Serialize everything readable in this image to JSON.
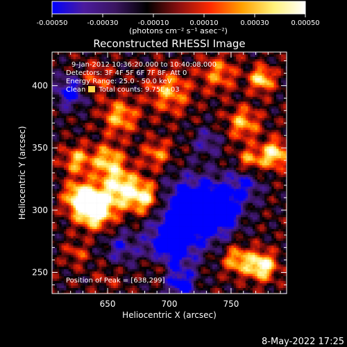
{
  "chart_data": {
    "type": "heatmap",
    "title": "Reconstructed RHESSI Image",
    "xlabel": "Heliocentric X (arcsec)",
    "ylabel": "Heliocentric Y (arcsec)",
    "xlim": [
      605,
      795
    ],
    "ylim": [
      233,
      427
    ],
    "x_ticks": [
      650,
      700,
      750
    ],
    "y_ticks": [
      250,
      300,
      350,
      400
    ],
    "colorbar": {
      "range": [
        -0.0005,
        0.0005
      ],
      "tick_values": [
        -0.0005,
        -0.0003,
        -0.0001,
        0.0001,
        0.0003,
        0.0005
      ],
      "tick_labels": [
        "-0.00050",
        "-0.00030",
        "-0.00010",
        "0.00010",
        "0.00030",
        "0.00050"
      ],
      "units_label": "(photons cm⁻² s⁻¹ asec⁻²)",
      "colors": [
        "#0000ff",
        "#4b1b9e",
        "#3a1560",
        "#000000",
        "#8a0f0f",
        "#ff2a00",
        "#ffa000",
        "#fff27a",
        "#ffffff"
      ]
    },
    "annotations": [
      "9-Jan-2012 10:36:20.000 to 10:40:08.000",
      "Detectors: 3F 4F 5F 6F 7F 8F, Att 0",
      "Energy Range: 25.0 - 50.0 keV",
      "Clean      Total counts: 9.75E+03",
      "Position of Peak = [638,299]"
    ],
    "peak": {
      "x": 638,
      "y": 299
    },
    "hot_spots": [
      {
        "x": 640,
        "y": 300,
        "amp": 1.0,
        "s": 10
      },
      {
        "x": 628,
        "y": 310,
        "amp": 0.8,
        "s": 9
      },
      {
        "x": 660,
        "y": 318,
        "amp": 0.75,
        "s": 11
      },
      {
        "x": 680,
        "y": 310,
        "amp": 0.7,
        "s": 9
      },
      {
        "x": 650,
        "y": 340,
        "amp": 0.6,
        "s": 9
      },
      {
        "x": 625,
        "y": 340,
        "amp": 0.55,
        "s": 8
      },
      {
        "x": 660,
        "y": 375,
        "amp": 0.55,
        "s": 10
      },
      {
        "x": 690,
        "y": 345,
        "amp": 0.45,
        "s": 8
      },
      {
        "x": 700,
        "y": 395,
        "amp": 0.5,
        "s": 12
      },
      {
        "x": 640,
        "y": 405,
        "amp": 0.35,
        "s": 9
      },
      {
        "x": 740,
        "y": 410,
        "amp": 0.45,
        "s": 10
      },
      {
        "x": 775,
        "y": 405,
        "amp": 0.7,
        "s": 7
      },
      {
        "x": 760,
        "y": 370,
        "amp": 0.55,
        "s": 9
      },
      {
        "x": 785,
        "y": 345,
        "amp": 0.75,
        "s": 8
      },
      {
        "x": 765,
        "y": 340,
        "amp": 0.5,
        "s": 7
      },
      {
        "x": 775,
        "y": 255,
        "amp": 0.85,
        "s": 8
      },
      {
        "x": 755,
        "y": 260,
        "amp": 0.6,
        "s": 8
      },
      {
        "x": 690,
        "y": 255,
        "amp": 0.35,
        "s": 7
      },
      {
        "x": 625,
        "y": 265,
        "amp": 0.3,
        "s": 7
      },
      {
        "x": 650,
        "y": 245,
        "amp": 0.2,
        "s": 7
      }
    ],
    "cold_spots": [
      {
        "x": 720,
        "y": 300,
        "amp": 0.9,
        "s": 18
      },
      {
        "x": 700,
        "y": 270,
        "amp": 0.7,
        "s": 14
      },
      {
        "x": 620,
        "y": 395,
        "amp": 0.6,
        "s": 9
      },
      {
        "x": 740,
        "y": 300,
        "amp": 0.6,
        "s": 12
      },
      {
        "x": 660,
        "y": 270,
        "amp": 0.4,
        "s": 9
      },
      {
        "x": 760,
        "y": 320,
        "amp": 0.45,
        "s": 10
      },
      {
        "x": 730,
        "y": 355,
        "amp": 0.35,
        "s": 8
      },
      {
        "x": 710,
        "y": 240,
        "amp": 0.6,
        "s": 8
      }
    ]
  },
  "footer_timestamp": "8-May-2022 17:25"
}
